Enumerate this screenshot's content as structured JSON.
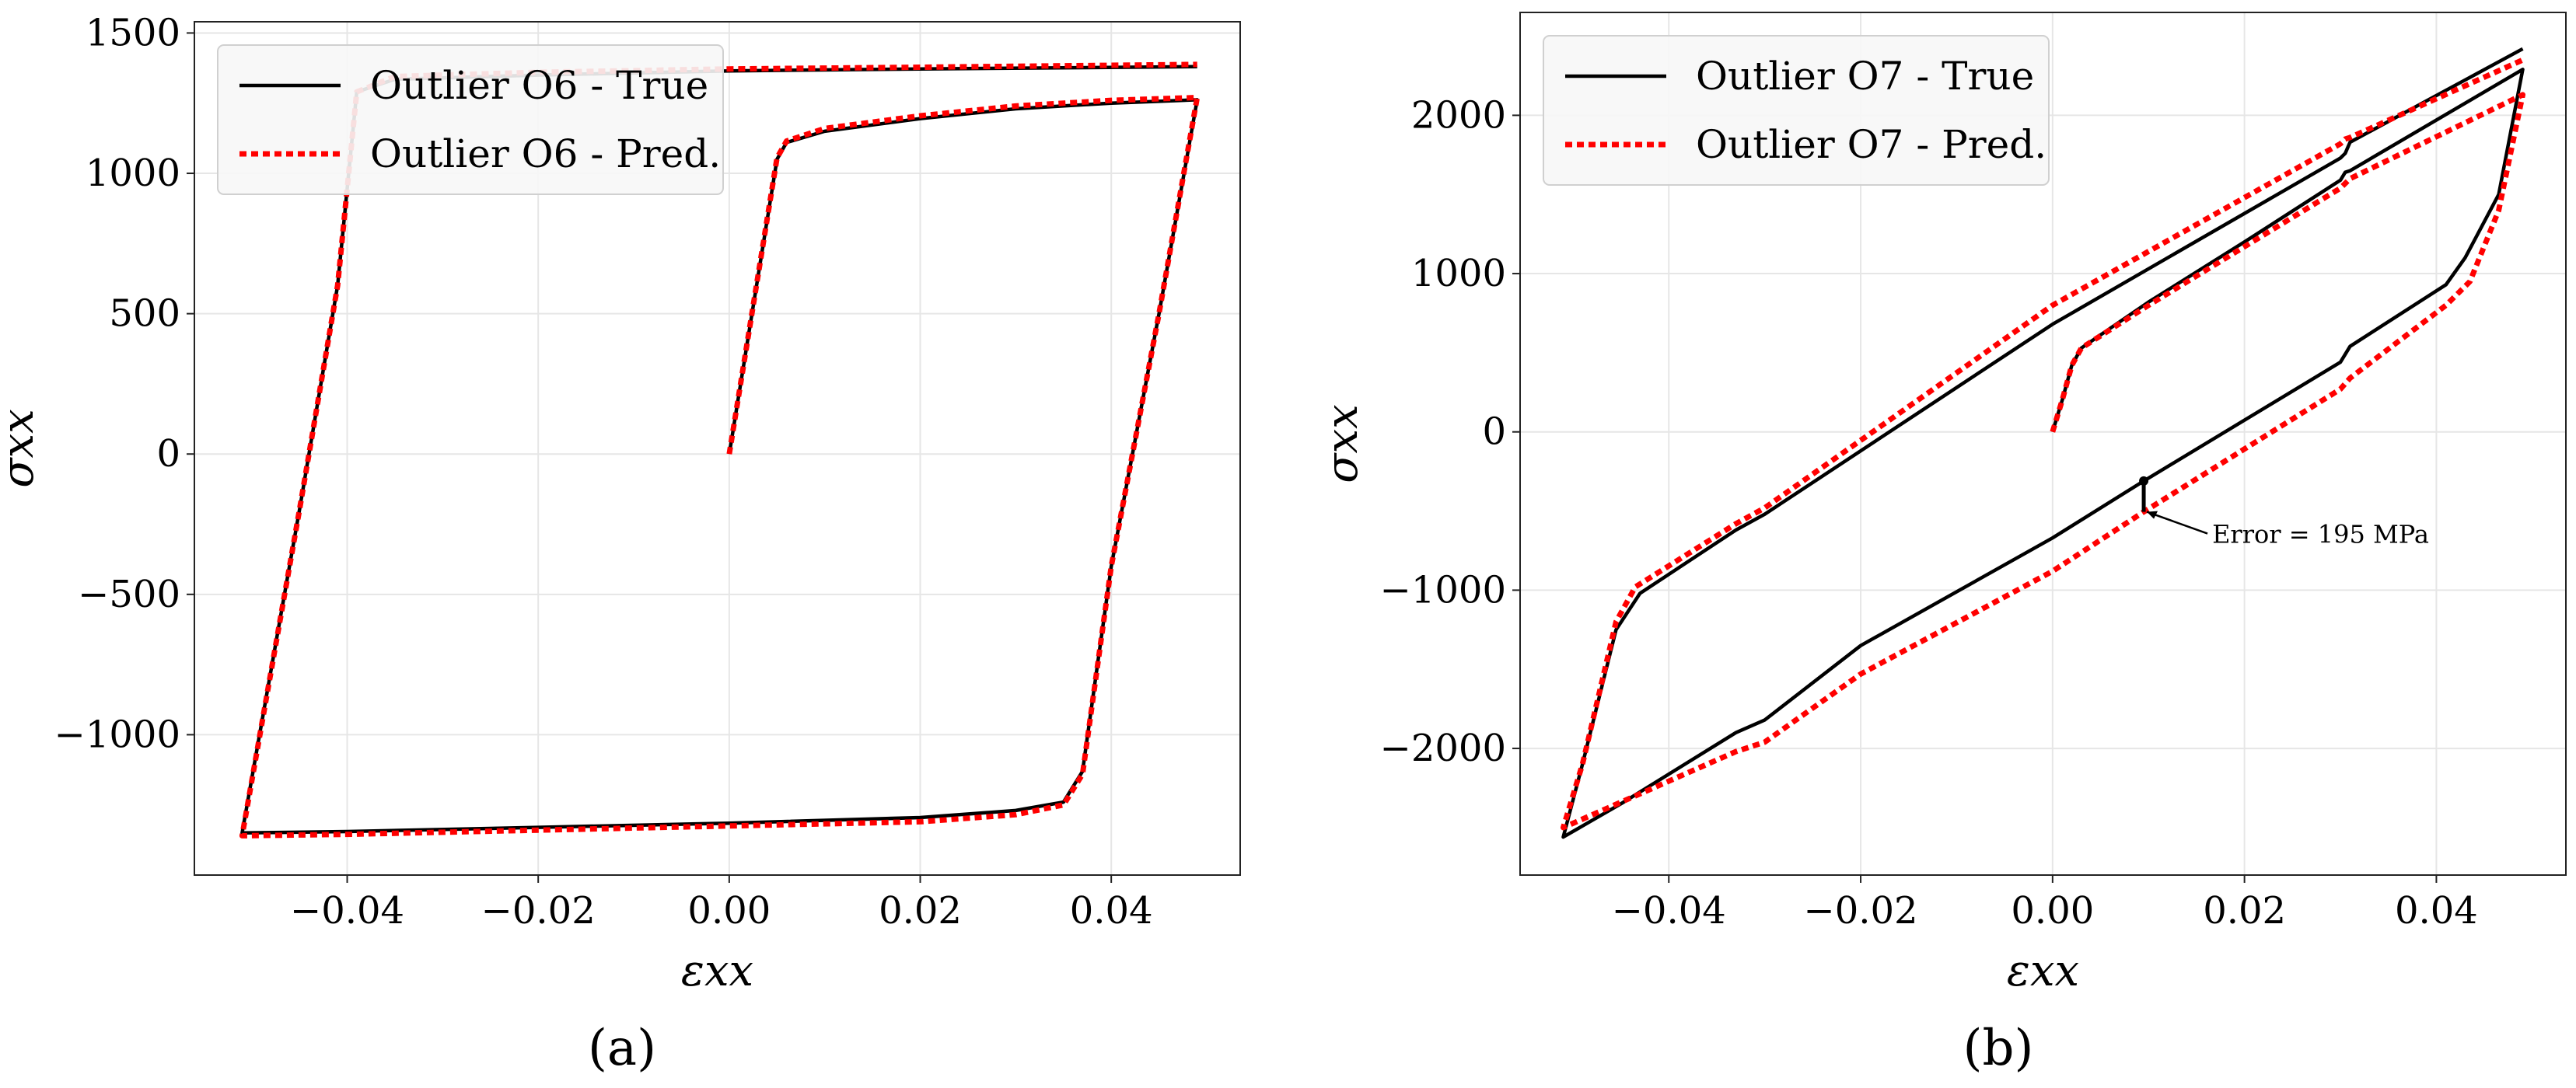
{
  "chart_data": [
    {
      "type": "line",
      "panel_label": "(a)",
      "xlabel": "εxx",
      "ylabel": "σxx",
      "xlim": [
        -0.056,
        0.0535
      ],
      "ylim": [
        -1500,
        1540
      ],
      "xticks": [
        -0.04,
        -0.02,
        0.0,
        0.02,
        0.04
      ],
      "xtick_labels": [
        "−0.04",
        "−0.02",
        "0.00",
        "0.02",
        "0.04"
      ],
      "yticks": [
        -1000,
        -500,
        0,
        500,
        1000,
        1500
      ],
      "ytick_labels": [
        "−1000",
        "−500",
        "0",
        "500",
        "1000",
        "1500"
      ],
      "grid": true,
      "legend": "top-left",
      "series": [
        {
          "name": "Outlier O6 - True",
          "color": "#000000",
          "style": "solid",
          "points": [
            [
              0.0,
              0
            ],
            [
              0.005,
              1050
            ],
            [
              0.006,
              1110
            ],
            [
              0.01,
              1150
            ],
            [
              0.02,
              1195
            ],
            [
              0.03,
              1230
            ],
            [
              0.04,
              1250
            ],
            [
              0.049,
              1262
            ],
            [
              0.045,
              500
            ],
            [
              0.04,
              -400
            ],
            [
              0.037,
              -1130
            ],
            [
              0.035,
              -1240
            ],
            [
              0.03,
              -1270
            ],
            [
              0.02,
              -1295
            ],
            [
              0.0,
              -1315
            ],
            [
              -0.02,
              -1330
            ],
            [
              -0.04,
              -1345
            ],
            [
              -0.051,
              -1350
            ],
            [
              -0.045,
              -200
            ],
            [
              -0.041,
              600
            ],
            [
              -0.039,
              1290
            ],
            [
              -0.035,
              1335
            ],
            [
              -0.02,
              1350
            ],
            [
              0.0,
              1365
            ],
            [
              0.02,
              1372
            ],
            [
              0.049,
              1380
            ]
          ]
        },
        {
          "name": "Outlier O6 - Pred.",
          "color": "#ff0000",
          "style": "dotted",
          "points": [
            [
              0.0,
              0
            ],
            [
              0.005,
              1055
            ],
            [
              0.006,
              1115
            ],
            [
              0.01,
              1160
            ],
            [
              0.02,
              1205
            ],
            [
              0.03,
              1240
            ],
            [
              0.04,
              1260
            ],
            [
              0.049,
              1270
            ],
            [
              0.045,
              500
            ],
            [
              0.04,
              -400
            ],
            [
              0.037,
              -1140
            ],
            [
              0.035,
              -1250
            ],
            [
              0.03,
              -1285
            ],
            [
              0.02,
              -1310
            ],
            [
              0.0,
              -1325
            ],
            [
              -0.02,
              -1340
            ],
            [
              -0.04,
              -1355
            ],
            [
              -0.051,
              -1360
            ],
            [
              -0.045,
              -200
            ],
            [
              -0.041,
              600
            ],
            [
              -0.039,
              1290
            ],
            [
              -0.035,
              1345
            ],
            [
              -0.02,
              1360
            ],
            [
              0.0,
              1372
            ],
            [
              0.02,
              1378
            ],
            [
              0.049,
              1388
            ]
          ]
        }
      ]
    },
    {
      "type": "line",
      "panel_label": "(b)",
      "xlabel": "εxx",
      "ylabel": "σxx",
      "xlim": [
        -0.0555,
        0.0535
      ],
      "ylim": [
        -2800,
        2650
      ],
      "xticks": [
        -0.04,
        -0.02,
        0.0,
        0.02,
        0.04
      ],
      "xtick_labels": [
        "−0.04",
        "−0.02",
        "0.00",
        "0.02",
        "0.04"
      ],
      "yticks": [
        -2000,
        -1000,
        0,
        1000,
        2000
      ],
      "ytick_labels": [
        "−2000",
        "−1000",
        "0",
        "1000",
        "2000"
      ],
      "grid": true,
      "legend": "top-left",
      "annotation": {
        "text": "Error = 195 MPa",
        "x": 0.0095,
        "y1": -310,
        "y2": -505
      },
      "series": [
        {
          "name": "Outlier O7 - True",
          "color": "#000000",
          "style": "solid",
          "points": [
            [
              0.0,
              0
            ],
            [
              0.001,
              200
            ],
            [
              0.002,
              420
            ],
            [
              0.003,
              530
            ],
            [
              0.01,
              820
            ],
            [
              0.02,
              1200
            ],
            [
              0.03,
              1590
            ],
            [
              0.0305,
              1640
            ],
            [
              0.031,
              1650
            ],
            [
              0.049,
              2290
            ],
            [
              0.0465,
              1500
            ],
            [
              0.043,
              1100
            ],
            [
              0.041,
              930
            ],
            [
              0.031,
              540
            ],
            [
              0.03,
              440
            ],
            [
              0.0095,
              -310
            ],
            [
              0.0,
              -670
            ],
            [
              -0.02,
              -1350
            ],
            [
              -0.03,
              -1820
            ],
            [
              -0.033,
              -1900
            ],
            [
              -0.045,
              -2350
            ],
            [
              -0.051,
              -2560
            ],
            [
              -0.049,
              -2100
            ],
            [
              -0.0455,
              -1250
            ],
            [
              -0.043,
              -1020
            ],
            [
              -0.033,
              -620
            ],
            [
              -0.03,
              -520
            ],
            [
              0.0,
              680
            ],
            [
              0.03,
              1730
            ],
            [
              0.0305,
              1760
            ],
            [
              0.031,
              1830
            ],
            [
              0.049,
              2420
            ]
          ]
        },
        {
          "name": "Outlier O7 - Pred.",
          "color": "#ff0000",
          "style": "dotted",
          "points": [
            [
              0.0,
              0
            ],
            [
              0.001,
              200
            ],
            [
              0.002,
              420
            ],
            [
              0.003,
              530
            ],
            [
              0.01,
              800
            ],
            [
              0.02,
              1170
            ],
            [
              0.03,
              1540
            ],
            [
              0.0305,
              1570
            ],
            [
              0.031,
              1600
            ],
            [
              0.049,
              2130
            ],
            [
              0.0465,
              1400
            ],
            [
              0.0435,
              950
            ],
            [
              0.041,
              800
            ],
            [
              0.031,
              340
            ],
            [
              0.03,
              270
            ],
            [
              0.0095,
              -505
            ],
            [
              0.0,
              -880
            ],
            [
              -0.02,
              -1530
            ],
            [
              -0.03,
              -1960
            ],
            [
              -0.033,
              -2020
            ],
            [
              -0.045,
              -2340
            ],
            [
              -0.051,
              -2500
            ],
            [
              -0.049,
              -2100
            ],
            [
              -0.0455,
              -1200
            ],
            [
              -0.0435,
              -980
            ],
            [
              -0.033,
              -580
            ],
            [
              -0.03,
              -480
            ],
            [
              0.0,
              800
            ],
            [
              0.03,
              1820
            ],
            [
              0.0305,
              1850
            ],
            [
              0.031,
              1860
            ],
            [
              0.049,
              2350
            ]
          ]
        }
      ]
    }
  ]
}
